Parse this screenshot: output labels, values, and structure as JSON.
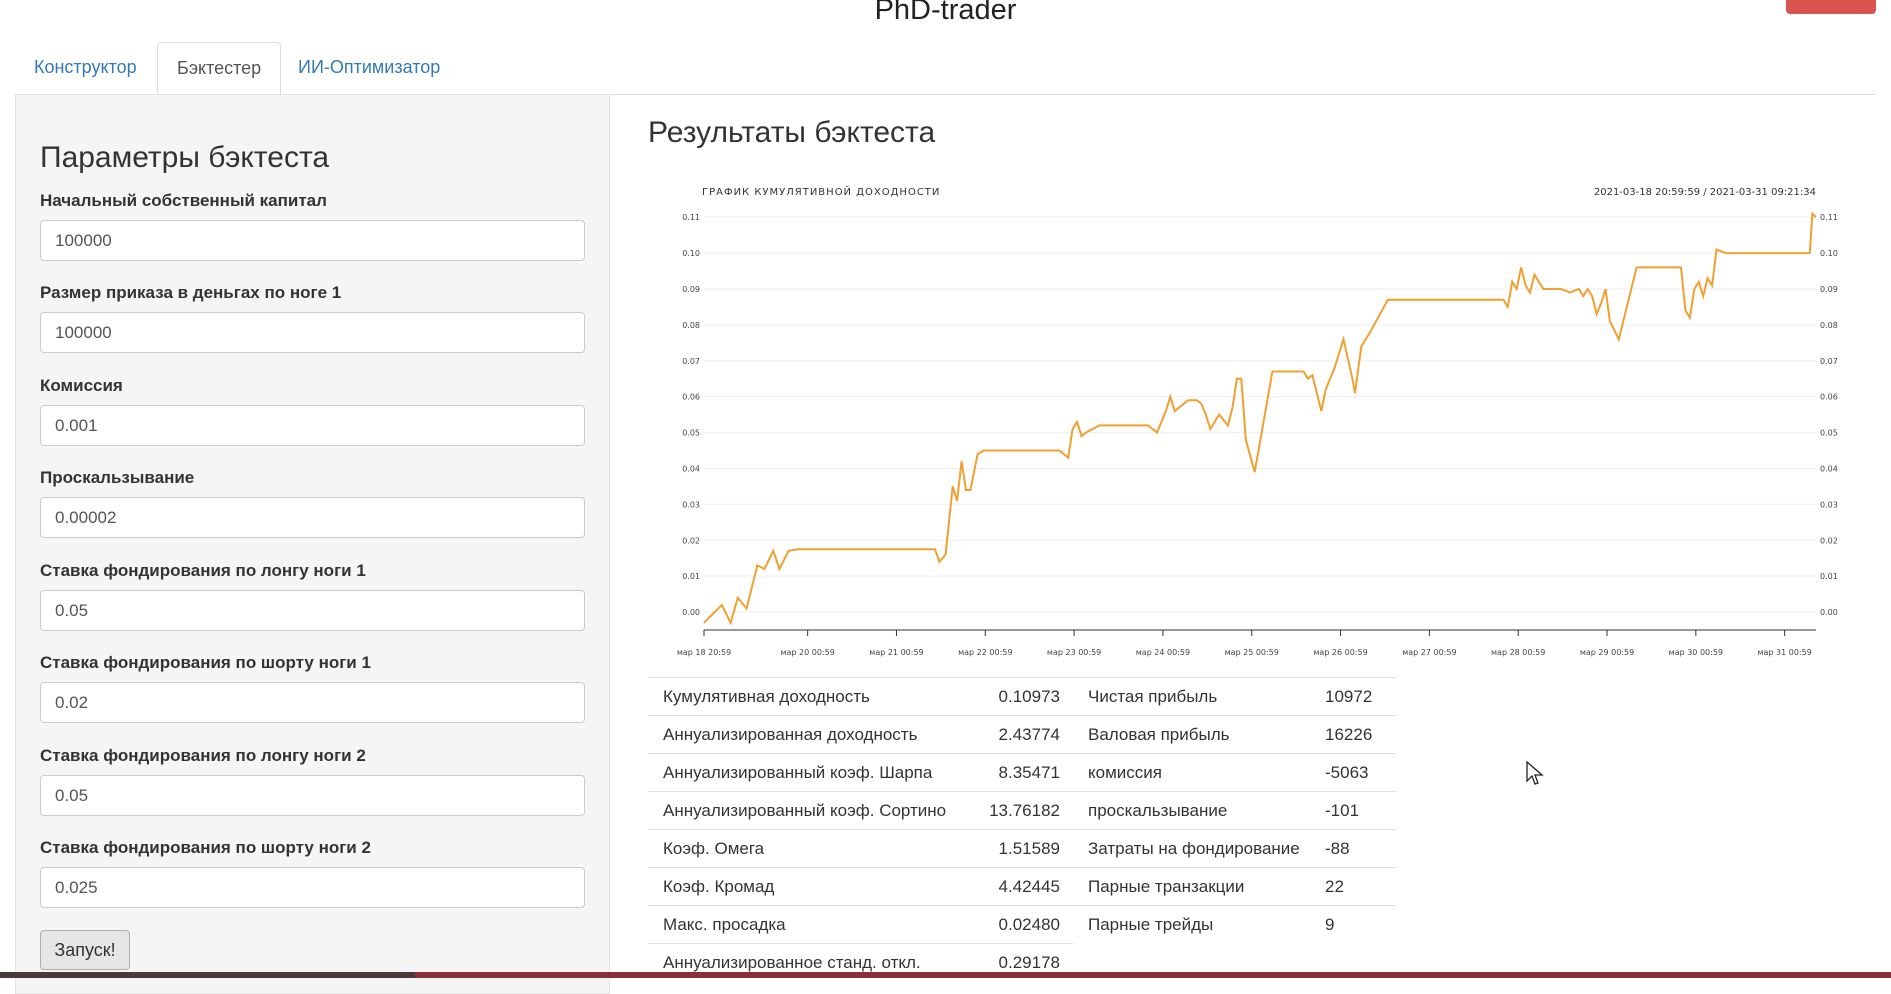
{
  "app": {
    "title": "PhD-trader"
  },
  "tabs": [
    {
      "label": "Конструктор"
    },
    {
      "label": "Бэктестер",
      "active": true
    },
    {
      "label": "ИИ-Оптимизатор"
    }
  ],
  "params": {
    "title": "Параметры бэктеста",
    "fields": [
      {
        "label": "Начальный собственный капитал",
        "value": "100000"
      },
      {
        "label": "Размер приказа в деньгах по ноге 1",
        "value": "100000"
      },
      {
        "label": "Комиссия",
        "value": "0.001"
      },
      {
        "label": "Проскальзывание",
        "value": "0.00002"
      },
      {
        "label": "Ставка фондирования по лонгу ноги 1",
        "value": "0.05"
      },
      {
        "label": "Ставка фондирования по шорту ноги 1",
        "value": "0.02"
      },
      {
        "label": "Ставка фондирования по лонгу ноги 2",
        "value": "0.05"
      },
      {
        "label": "Ставка фондирования по шорту ноги 2",
        "value": "0.025"
      }
    ],
    "run_label": "Запуск!"
  },
  "results": {
    "title": "Результаты бэктеста",
    "metrics_left": [
      {
        "label": "Кумулятивная доходность",
        "value": "0.10973"
      },
      {
        "label": "Аннуализированная доходность",
        "value": "2.43774"
      },
      {
        "label": "Аннуализированный коэф. Шарпа",
        "value": "8.35471"
      },
      {
        "label": "Аннуализированный коэф. Сортино",
        "value": "13.76182"
      },
      {
        "label": "Коэф. Омега",
        "value": "1.51589"
      },
      {
        "label": "Коэф. Кромад",
        "value": "4.42445"
      },
      {
        "label": "Макс. просадка",
        "value": "0.02480"
      },
      {
        "label": "Аннуализированное станд. откл.",
        "value": "0.29178"
      }
    ],
    "metrics_right": [
      {
        "label": "Чистая прибыль",
        "value": "10972"
      },
      {
        "label": "Валовая прибыль",
        "value": "16226"
      },
      {
        "label": "комиссия",
        "value": "-5063"
      },
      {
        "label": "проскальзывание",
        "value": "-101"
      },
      {
        "label": "Затраты на фондирование",
        "value": "-88"
      },
      {
        "label": "Парные транзакции",
        "value": "22"
      },
      {
        "label": "Парные трейды",
        "value": "9"
      }
    ]
  },
  "colors": {
    "line": "#f0a030",
    "accent": "#337ab7",
    "danger": "#d9534f"
  },
  "chart_data": {
    "type": "line",
    "title": "ГРАФИК КУМУЛЯТИВНОЙ ДОХОДНОСТИ",
    "range_label": "2021-03-18 20:59:59 / 2021-03-31 09:21:34",
    "ylim": [
      -0.005,
      0.112
    ],
    "y_ticks": [
      "0.00",
      "0.01",
      "0.02",
      "0.03",
      "0.04",
      "0.05",
      "0.06",
      "0.07",
      "0.08",
      "0.09",
      "0.10",
      "0.11"
    ],
    "x_ticks": [
      "мар 18 20:59",
      "мар 20 00:59",
      "мар 21 00:59",
      "мар 22 00:59",
      "мар 23 00:59",
      "мар 24 00:59",
      "мар 25 00:59",
      "мар 26 00:59",
      "мар 27 00:59",
      "мар 28 00:59",
      "мар 29 00:59",
      "мар 30 00:59",
      "мар 31 00:59"
    ],
    "x_tick_days": [
      0,
      1.167,
      2.167,
      3.167,
      4.167,
      5.167,
      6.167,
      7.167,
      8.167,
      9.167,
      10.167,
      11.167,
      12.167
    ],
    "x_range_days": [
      0,
      12.52
    ],
    "grid": true,
    "series": [
      {
        "x": [
          0,
          0.2,
          0.3,
          0.38,
          0.48,
          0.6,
          0.68,
          0.78,
          0.85,
          0.95,
          1.05,
          1.3,
          1.6,
          2.0,
          2.4,
          2.6,
          2.65,
          2.72,
          2.8,
          2.85,
          2.9,
          2.95,
          3.0,
          3.08,
          3.15,
          3.25,
          3.5,
          4.0,
          4.1,
          4.15,
          4.2,
          4.25,
          4.3,
          4.45,
          4.7,
          5.0,
          5.1,
          5.2,
          5.25,
          5.3,
          5.45,
          5.55,
          5.6,
          5.65,
          5.7,
          5.8,
          5.9,
          5.95,
          6.0,
          6.05,
          6.1,
          6.2,
          6.4,
          6.6,
          6.75,
          6.8,
          6.85,
          6.95,
          7.0,
          7.1,
          7.15,
          7.2,
          7.3,
          7.33,
          7.4,
          7.5,
          7.7,
          8.0,
          8.5,
          9.0,
          9.05,
          9.1,
          9.15,
          9.2,
          9.25,
          9.3,
          9.35,
          9.45,
          9.55,
          9.65,
          9.75,
          9.85,
          9.9,
          9.95,
          10.0,
          10.05,
          10.1,
          10.15,
          10.2,
          10.3,
          10.5,
          10.8,
          11.0,
          11.05,
          11.1,
          11.15,
          11.2,
          11.25,
          11.3,
          11.35,
          11.4,
          11.5,
          11.7,
          12.0,
          12.3,
          12.45,
          12.48,
          12.52
        ],
        "y": [
          -0.003,
          0.002,
          -0.003,
          0.004,
          0.001,
          0.013,
          0.012,
          0.017,
          0.012,
          0.017,
          0.0175,
          0.0175,
          0.0175,
          0.0175,
          0.0175,
          0.0175,
          0.014,
          0.016,
          0.035,
          0.031,
          0.042,
          0.034,
          0.034,
          0.044,
          0.045,
          0.045,
          0.045,
          0.045,
          0.043,
          0.051,
          0.053,
          0.049,
          0.05,
          0.052,
          0.052,
          0.052,
          0.05,
          0.056,
          0.06,
          0.056,
          0.059,
          0.059,
          0.058,
          0.055,
          0.051,
          0.055,
          0.052,
          0.057,
          0.065,
          0.065,
          0.048,
          0.039,
          0.067,
          0.067,
          0.067,
          0.065,
          0.066,
          0.056,
          0.062,
          0.068,
          0.072,
          0.076,
          0.065,
          0.061,
          0.074,
          0.078,
          0.087,
          0.087,
          0.087,
          0.087,
          0.085,
          0.092,
          0.09,
          0.096,
          0.091,
          0.089,
          0.094,
          0.09,
          0.09,
          0.09,
          0.089,
          0.09,
          0.088,
          0.09,
          0.088,
          0.083,
          0.086,
          0.09,
          0.081,
          0.076,
          0.096,
          0.096,
          0.096,
          0.084,
          0.082,
          0.09,
          0.092,
          0.088,
          0.093,
          0.091,
          0.101,
          0.1,
          0.1,
          0.1,
          0.1,
          0.1,
          0.111,
          0.11
        ]
      }
    ]
  }
}
